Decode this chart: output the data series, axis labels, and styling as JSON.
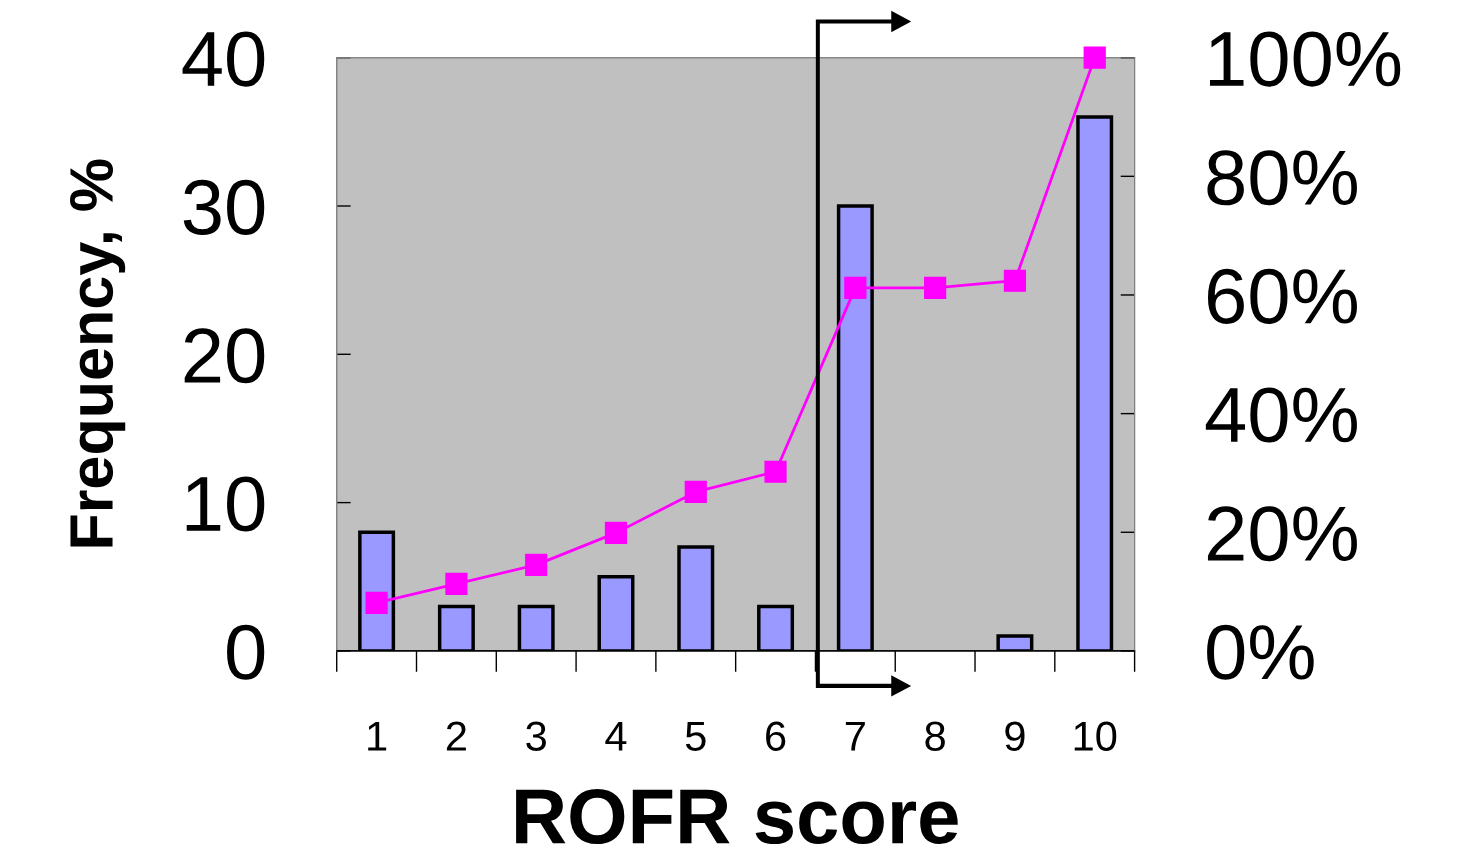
{
  "chart_data": {
    "type": "bar",
    "xlabel": "ROFR score",
    "ylabel": "Frequency, %",
    "categories": [
      "1",
      "2",
      "3",
      "4",
      "5",
      "6",
      "7",
      "8",
      "9",
      "10"
    ],
    "series": [
      {
        "color": "#9999ff",
        "values": [
          8,
          3,
          3,
          5,
          7,
          3,
          30,
          0,
          1,
          36
        ]
      },
      {
        "type": "line",
        "axis": "y2",
        "color": "#ff00ff",
        "marker": "square",
        "line_style": "solid",
        "values": [
          8.1,
          11.3,
          14.5,
          19.9,
          26.8,
          30.2,
          61.2,
          61.2,
          62.4,
          100
        ]
      }
    ],
    "ylim": [
      0,
      40
    ],
    "yticks": [
      0,
      10,
      20,
      30,
      40
    ],
    "y2lim": [
      0,
      100
    ],
    "y2ticks": [
      {
        "value": 0,
        "label": "0%"
      },
      {
        "value": 20,
        "label": "20%"
      },
      {
        "value": 40,
        "label": "40%"
      },
      {
        "value": 60,
        "label": "60%"
      },
      {
        "value": 80,
        "label": "80%"
      },
      {
        "value": 100,
        "label": "100%"
      }
    ],
    "grid": false
  }
}
